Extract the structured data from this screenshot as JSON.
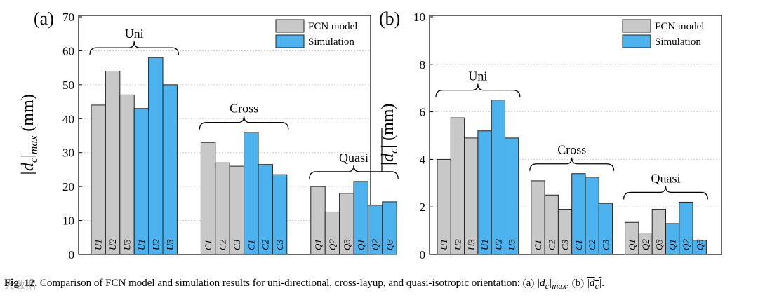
{
  "colors": {
    "fcn": "#c8c8c8",
    "sim": "#4db3ef",
    "edge": "#222222"
  },
  "chart_data": [
    {
      "type": "bar",
      "panel": "(a)",
      "ylabel_text": "|d",
      "ylabel_sub": "c",
      "ylabel_text2": "|",
      "ylabel_sub2": "max",
      "ylabel_unit": " (mm)",
      "ylim": [
        0,
        70
      ],
      "yticks": [
        0,
        10,
        20,
        30,
        40,
        50,
        60,
        70
      ],
      "legend": [
        {
          "name": "FCN model",
          "color": "fcn"
        },
        {
          "name": "Simulation",
          "color": "sim"
        }
      ],
      "groups": [
        {
          "name": "Uni",
          "categories": [
            "U1",
            "U2",
            "U3",
            "U1",
            "U2",
            "U3"
          ],
          "series": [
            "fcn",
            "fcn",
            "fcn",
            "sim",
            "sim",
            "sim"
          ],
          "values": [
            44,
            54,
            47,
            43,
            58,
            50
          ]
        },
        {
          "name": "Cross",
          "categories": [
            "C1",
            "C2",
            "C3",
            "C1",
            "C2",
            "C3"
          ],
          "series": [
            "fcn",
            "fcn",
            "fcn",
            "sim",
            "sim",
            "sim"
          ],
          "values": [
            33,
            27,
            26,
            36,
            26.5,
            23.5
          ]
        },
        {
          "name": "Quasi",
          "categories": [
            "Q1",
            "Q2",
            "Q3",
            "Q1",
            "Q2",
            "Q3"
          ],
          "series": [
            "fcn",
            "fcn",
            "fcn",
            "sim",
            "sim",
            "sim"
          ],
          "values": [
            20,
            12.5,
            18,
            21.5,
            14.5,
            15.5
          ]
        }
      ]
    },
    {
      "type": "bar",
      "panel": "(b)",
      "ylabel_text": "|d",
      "ylabel_sub": "c",
      "ylabel_text2": "|",
      "ylabel_sub2": "",
      "ylabel_unit": " (mm)",
      "ylim": [
        0,
        10
      ],
      "yticks": [
        0,
        2,
        4,
        6,
        8,
        10
      ],
      "legend": [
        {
          "name": "FCN model",
          "color": "fcn"
        },
        {
          "name": "Simulation",
          "color": "sim"
        }
      ],
      "groups": [
        {
          "name": "Uni",
          "categories": [
            "U1",
            "U2",
            "U3",
            "U1",
            "U2",
            "U3"
          ],
          "series": [
            "fcn",
            "fcn",
            "fcn",
            "sim",
            "sim",
            "sim"
          ],
          "values": [
            4.0,
            5.75,
            4.9,
            5.2,
            6.5,
            4.9
          ]
        },
        {
          "name": "Cross",
          "categories": [
            "C1",
            "C2",
            "C3",
            "C1",
            "C2",
            "C3"
          ],
          "series": [
            "fcn",
            "fcn",
            "fcn",
            "sim",
            "sim",
            "sim"
          ],
          "values": [
            3.1,
            2.5,
            1.9,
            3.4,
            3.25,
            2.15
          ]
        },
        {
          "name": "Quasi",
          "categories": [
            "Q1",
            "Q2",
            "Q3",
            "Q1",
            "Q2",
            "Q3"
          ],
          "series": [
            "fcn",
            "fcn",
            "fcn",
            "sim",
            "sim",
            "sim"
          ],
          "values": [
            1.35,
            0.9,
            1.9,
            1.3,
            2.2,
            0.6
          ]
        }
      ]
    }
  ],
  "caption": {
    "label": "Fig. 12.",
    "text": " Comparison of FCN model and simulation results for uni-directional, cross-layup, and quasi-isotropic orientation: (a) ",
    "math_a": "|d",
    "math_a_sub": "c",
    "math_a_end": "|",
    "math_a_sub2": "max",
    "mid": ", (b) ",
    "math_b": "|d",
    "math_b_sub": "c",
    "math_b_end": "|",
    "end": "."
  },
  "watermark": "大数据"
}
